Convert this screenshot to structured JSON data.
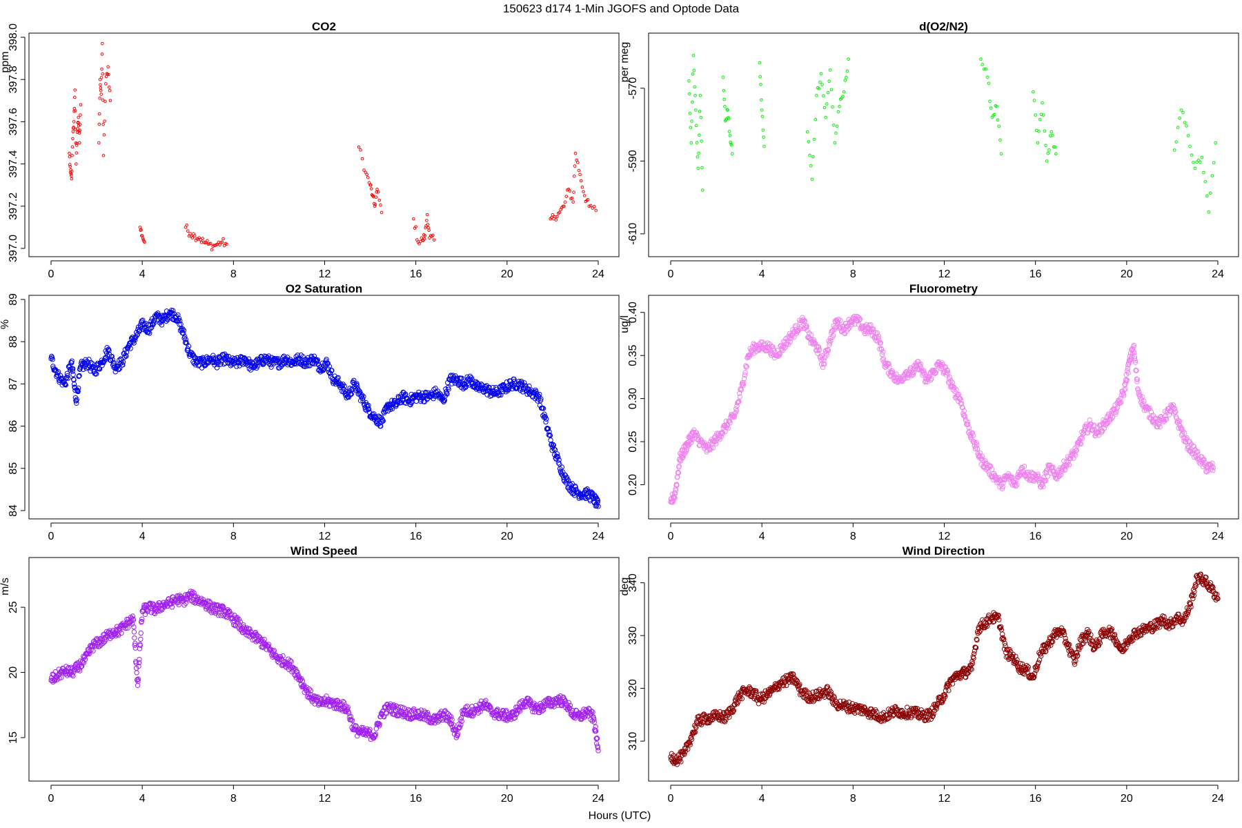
{
  "figure": {
    "title": "150623   d174   1-Min  JGOFS and Optode Data",
    "x_label": "Hours (UTC)"
  },
  "chart_data": [
    {
      "type": "scatter",
      "title": "CO2",
      "xlabel": "",
      "ylabel": "ppm",
      "xlim": [
        0,
        24
      ],
      "ylim": [
        397.0,
        398.0
      ],
      "xticks": [
        0,
        4,
        8,
        12,
        16,
        20,
        24
      ],
      "yticks": [
        397.0,
        397.2,
        397.4,
        397.6,
        397.8,
        398.0
      ],
      "ytick_labels": [
        "397.0",
        "397.2",
        "397.4",
        "397.6",
        "397.8",
        "398.0"
      ],
      "ytick_rotation": "vertical",
      "color": "#ff0000",
      "marker_size": "small",
      "x": [
        0.8,
        0.85,
        0.9,
        0.95,
        1.0,
        1.05,
        1.1,
        1.15,
        1.2,
        1.25,
        1.3,
        2.1,
        2.15,
        2.2,
        2.25,
        2.3,
        2.4,
        2.5,
        2.6,
        3.9,
        4.0,
        4.1,
        5.9,
        6.1,
        6.3,
        6.5,
        6.7,
        6.9,
        7.1,
        7.3,
        7.5,
        7.7,
        13.5,
        13.8,
        14.0,
        14.1,
        14.2,
        14.3,
        14.5,
        15.9,
        16.1,
        16.3,
        16.4,
        16.5,
        16.6,
        16.8,
        21.9,
        22.1,
        22.3,
        22.5,
        22.7,
        22.9,
        23.0,
        23.2,
        23.4,
        23.6,
        23.9
      ],
      "y": [
        397.45,
        397.36,
        397.33,
        397.52,
        397.6,
        397.75,
        397.4,
        397.55,
        397.62,
        397.5,
        397.68,
        397.5,
        397.8,
        397.73,
        397.97,
        397.44,
        397.78,
        397.86,
        397.7,
        397.1,
        397.06,
        397.03,
        397.1,
        397.07,
        397.06,
        397.05,
        397.03,
        397.02,
        397.01,
        397.02,
        397.03,
        397.02,
        397.48,
        397.36,
        397.3,
        397.25,
        397.2,
        397.28,
        397.17,
        397.14,
        397.03,
        397.04,
        397.06,
        397.16,
        397.05,
        397.04,
        397.14,
        397.15,
        397.17,
        397.2,
        397.28,
        397.22,
        397.45,
        397.35,
        397.25,
        397.2,
        397.18
      ]
    },
    {
      "type": "scatter",
      "title": "d(O2/N2)",
      "xlabel": "",
      "ylabel": "per meg",
      "xlim": [
        0,
        24
      ],
      "ylim": [
        -614,
        -556
      ],
      "xticks": [
        0,
        4,
        8,
        12,
        16,
        20,
        24
      ],
      "yticks": [
        -570,
        -590,
        -610
      ],
      "ytick_labels": [
        "-570",
        "-590",
        "-610"
      ],
      "ytick_rotation": "vertical",
      "color": "#00ee00",
      "marker_size": "small",
      "x": [
        0.8,
        0.9,
        1.0,
        1.1,
        1.2,
        1.3,
        1.4,
        2.3,
        2.4,
        2.5,
        2.6,
        2.7,
        3.9,
        4.0,
        4.1,
        6.0,
        6.2,
        6.4,
        6.6,
        6.8,
        7.0,
        7.2,
        7.4,
        7.6,
        7.8,
        13.6,
        13.9,
        14.1,
        14.3,
        14.5,
        15.9,
        16.1,
        16.3,
        16.5,
        16.7,
        16.9,
        22.1,
        22.4,
        22.7,
        23.0,
        23.3,
        23.6,
        23.9
      ],
      "y": [
        -568,
        -585,
        -561,
        -576,
        -592,
        -572,
        -598,
        -567,
        -579,
        -576,
        -583,
        -588,
        -563,
        -576,
        -586,
        -582,
        -595,
        -572,
        -566,
        -578,
        -565,
        -585,
        -575,
        -571,
        -562,
        -562,
        -567,
        -578,
        -575,
        -588,
        -571,
        -585,
        -574,
        -590,
        -582,
        -588,
        -587,
        -576,
        -583,
        -592,
        -589,
        -604,
        -585
      ],
      "dark_points_note": ""
    },
    {
      "type": "scatter",
      "title": "O2 Saturation",
      "xlabel": "",
      "ylabel": "%",
      "xlim": [
        0,
        24
      ],
      "ylim": [
        84,
        89
      ],
      "xticks": [
        0,
        4,
        8,
        12,
        16,
        20,
        24
      ],
      "yticks": [
        84,
        85,
        86,
        87,
        88,
        89
      ],
      "ytick_labels": [
        "84",
        "85",
        "86",
        "87",
        "88",
        "89"
      ],
      "ytick_rotation": "vertical",
      "color": "#0000ee",
      "marker_size": "large",
      "x": [
        0.0,
        0.3,
        0.6,
        0.9,
        1.1,
        1.3,
        1.6,
        1.9,
        2.2,
        2.5,
        2.8,
        3.1,
        3.4,
        3.7,
        4.0,
        4.3,
        4.6,
        4.9,
        5.2,
        5.5,
        5.8,
        6.1,
        6.4,
        6.7,
        7.0,
        7.3,
        7.6,
        7.9,
        8.2,
        8.5,
        8.8,
        9.1,
        9.4,
        9.7,
        10.0,
        10.3,
        10.6,
        10.9,
        11.2,
        11.5,
        11.8,
        12.1,
        12.4,
        12.7,
        13.0,
        13.3,
        13.6,
        13.9,
        14.2,
        14.5,
        14.8,
        15.1,
        15.4,
        15.7,
        16.0,
        16.3,
        16.6,
        16.9,
        17.2,
        17.5,
        17.8,
        18.1,
        18.4,
        18.7,
        19.0,
        19.3,
        19.6,
        19.9,
        20.2,
        20.5,
        20.8,
        21.1,
        21.4,
        21.7,
        22.0,
        22.3,
        22.6,
        22.9,
        23.2,
        23.5,
        23.8,
        24.0
      ],
      "y": [
        87.6,
        87.2,
        87.0,
        87.5,
        86.6,
        87.4,
        87.5,
        87.3,
        87.5,
        87.8,
        87.4,
        87.5,
        87.9,
        88.1,
        88.4,
        88.3,
        88.6,
        88.5,
        88.7,
        88.6,
        88.2,
        87.7,
        87.5,
        87.5,
        87.6,
        87.5,
        87.6,
        87.5,
        87.5,
        87.6,
        87.4,
        87.5,
        87.6,
        87.5,
        87.5,
        87.6,
        87.5,
        87.6,
        87.5,
        87.6,
        87.4,
        87.5,
        87.1,
        87.0,
        86.7,
        87.0,
        86.7,
        86.4,
        86.2,
        86.1,
        86.5,
        86.5,
        86.7,
        86.6,
        86.7,
        86.7,
        86.7,
        86.8,
        86.6,
        87.1,
        87.1,
        87.0,
        87.1,
        86.9,
        86.9,
        86.8,
        86.8,
        86.9,
        87.0,
        87.0,
        86.9,
        86.8,
        86.7,
        86.1,
        85.5,
        85.1,
        84.7,
        84.5,
        84.4,
        84.4,
        84.3,
        84.1
      ]
    },
    {
      "type": "scatter",
      "title": "Fluorometry",
      "xlabel": "",
      "ylabel": "ug/l",
      "xlim": [
        0,
        24
      ],
      "ylim": [
        0.17,
        0.415
      ],
      "xticks": [
        0,
        4,
        8,
        12,
        16,
        20,
        24
      ],
      "yticks": [
        0.2,
        0.25,
        0.3,
        0.35,
        0.4
      ],
      "ytick_labels": [
        "0.20",
        "0.25",
        "0.30",
        "0.35",
        "0.40"
      ],
      "ytick_rotation": "vertical",
      "color": "#ee82ee",
      "marker_size": "large",
      "x": [
        0.0,
        0.2,
        0.4,
        0.6,
        0.8,
        1.0,
        1.3,
        1.6,
        1.9,
        2.2,
        2.5,
        2.8,
        3.1,
        3.4,
        3.7,
        4.0,
        4.3,
        4.6,
        4.9,
        5.2,
        5.5,
        5.8,
        6.1,
        6.4,
        6.7,
        7.0,
        7.3,
        7.6,
        7.9,
        8.2,
        8.5,
        8.8,
        9.1,
        9.4,
        9.7,
        10.0,
        10.3,
        10.6,
        10.9,
        11.2,
        11.5,
        11.8,
        12.1,
        12.4,
        12.7,
        13.0,
        13.3,
        13.6,
        13.9,
        14.2,
        14.5,
        14.8,
        15.1,
        15.4,
        15.7,
        16.0,
        16.3,
        16.6,
        16.9,
        17.2,
        17.5,
        17.8,
        18.1,
        18.4,
        18.7,
        19.0,
        19.3,
        19.6,
        19.9,
        20.1,
        20.3,
        20.5,
        20.8,
        21.1,
        21.4,
        21.7,
        22.0,
        22.3,
        22.6,
        22.9,
        23.2,
        23.5,
        23.8
      ],
      "y": [
        0.18,
        0.19,
        0.23,
        0.24,
        0.25,
        0.26,
        0.25,
        0.24,
        0.25,
        0.26,
        0.27,
        0.28,
        0.31,
        0.35,
        0.36,
        0.36,
        0.36,
        0.35,
        0.36,
        0.37,
        0.38,
        0.39,
        0.37,
        0.36,
        0.34,
        0.37,
        0.39,
        0.38,
        0.39,
        0.39,
        0.38,
        0.38,
        0.37,
        0.34,
        0.33,
        0.32,
        0.33,
        0.33,
        0.34,
        0.32,
        0.33,
        0.34,
        0.33,
        0.31,
        0.3,
        0.27,
        0.25,
        0.23,
        0.22,
        0.21,
        0.2,
        0.21,
        0.2,
        0.22,
        0.21,
        0.21,
        0.2,
        0.22,
        0.21,
        0.22,
        0.23,
        0.24,
        0.26,
        0.27,
        0.26,
        0.27,
        0.28,
        0.29,
        0.31,
        0.34,
        0.36,
        0.31,
        0.29,
        0.28,
        0.27,
        0.28,
        0.29,
        0.27,
        0.25,
        0.24,
        0.23,
        0.22,
        0.22
      ]
    },
    {
      "type": "scatter",
      "title": "Wind Speed",
      "xlabel": "",
      "ylabel": "m/s",
      "xlim": [
        0,
        24
      ],
      "ylim": [
        12.3,
        28.5
      ],
      "xticks": [
        0,
        4,
        8,
        12,
        16,
        20,
        24
      ],
      "yticks": [
        15,
        20,
        25
      ],
      "ytick_labels": [
        "15",
        "20",
        "25"
      ],
      "ytick_rotation": "vertical",
      "color": "#a020f0",
      "marker_size": "large",
      "x": [
        0.0,
        0.3,
        0.6,
        0.9,
        1.2,
        1.5,
        1.8,
        2.1,
        2.4,
        2.7,
        3.0,
        3.3,
        3.6,
        3.8,
        4.0,
        4.3,
        4.6,
        4.9,
        5.2,
        5.5,
        5.8,
        6.1,
        6.4,
        6.7,
        7.0,
        7.3,
        7.6,
        7.9,
        8.2,
        8.5,
        8.8,
        9.1,
        9.4,
        9.7,
        10.0,
        10.3,
        10.6,
        10.9,
        11.2,
        11.5,
        11.8,
        12.1,
        12.4,
        12.7,
        13.0,
        13.3,
        13.6,
        13.9,
        14.2,
        14.5,
        14.8,
        15.1,
        15.4,
        15.7,
        16.0,
        16.3,
        16.6,
        16.9,
        17.2,
        17.5,
        17.8,
        18.1,
        18.4,
        18.7,
        19.0,
        19.3,
        19.6,
        19.9,
        20.2,
        20.5,
        20.8,
        21.1,
        21.4,
        21.7,
        22.0,
        22.3,
        22.6,
        22.9,
        23.2,
        23.5,
        23.8,
        24.0
      ],
      "y": [
        19.4,
        19.8,
        20.1,
        20.0,
        20.4,
        21.0,
        22.0,
        22.3,
        22.7,
        23.1,
        23.2,
        23.7,
        24.1,
        19.0,
        24.7,
        25.0,
        24.8,
        25.2,
        25.3,
        25.6,
        25.5,
        25.9,
        25.6,
        25.4,
        25.0,
        24.8,
        24.7,
        24.2,
        23.8,
        23.1,
        22.9,
        22.5,
        22.1,
        21.5,
        21.0,
        20.8,
        20.4,
        19.6,
        18.6,
        18.0,
        17.6,
        17.8,
        17.6,
        17.5,
        17.2,
        15.6,
        15.4,
        15.3,
        15.2,
        16.8,
        17.3,
        17.1,
        17.0,
        16.8,
        16.8,
        16.7,
        16.5,
        16.3,
        16.8,
        16.4,
        15.2,
        17.1,
        17.0,
        17.2,
        17.6,
        17.0,
        16.8,
        16.7,
        16.6,
        17.2,
        17.8,
        17.4,
        17.2,
        17.6,
        17.7,
        17.9,
        17.6,
        16.8,
        16.6,
        17.0,
        16.5,
        14.0
      ]
    },
    {
      "type": "scatter",
      "title": "Wind Direction",
      "xlabel": "",
      "ylabel": "deg",
      "xlim": [
        0,
        24
      ],
      "ylim": [
        304,
        344
      ],
      "xticks": [
        0,
        4,
        8,
        12,
        16,
        20,
        24
      ],
      "yticks": [
        310,
        320,
        330,
        340
      ],
      "ytick_labels": [
        "310",
        "320",
        "330",
        "340"
      ],
      "ytick_rotation": "vertical",
      "color": "#8b0000",
      "marker_size": "large",
      "x": [
        0.0,
        0.3,
        0.6,
        0.9,
        1.2,
        1.5,
        1.8,
        2.1,
        2.4,
        2.7,
        3.0,
        3.3,
        3.6,
        3.9,
        4.2,
        4.5,
        4.8,
        5.1,
        5.4,
        5.7,
        6.0,
        6.3,
        6.6,
        6.9,
        7.2,
        7.5,
        7.8,
        8.1,
        8.4,
        8.7,
        9.0,
        9.3,
        9.6,
        9.9,
        10.2,
        10.5,
        10.8,
        11.1,
        11.4,
        11.7,
        12.0,
        12.3,
        12.6,
        12.9,
        13.2,
        13.5,
        13.8,
        14.1,
        14.4,
        14.7,
        15.0,
        15.3,
        15.6,
        15.9,
        16.2,
        16.5,
        16.8,
        17.1,
        17.4,
        17.7,
        18.0,
        18.3,
        18.6,
        18.9,
        19.2,
        19.5,
        19.8,
        20.1,
        20.4,
        20.7,
        21.0,
        21.3,
        21.6,
        21.9,
        22.2,
        22.5,
        22.8,
        23.1,
        23.4,
        23.7,
        24.0
      ],
      "y": [
        307.0,
        306.5,
        307.5,
        310.8,
        313.8,
        314.2,
        314.5,
        314.8,
        314.4,
        316.2,
        318.5,
        319.6,
        319.2,
        317.8,
        318.7,
        319.7,
        321.0,
        321.5,
        322.0,
        319.5,
        318.5,
        318.4,
        319.0,
        319.5,
        317.2,
        316.8,
        316.5,
        316.2,
        316.0,
        315.5,
        315.0,
        314.5,
        315.2,
        315.8,
        315.3,
        315.5,
        315.2,
        314.8,
        315.0,
        317.0,
        318.8,
        321.5,
        322.5,
        323.0,
        323.6,
        331.5,
        332.4,
        333.5,
        333.0,
        326.8,
        326.0,
        324.0,
        323.5,
        322.0,
        326.5,
        328.0,
        330.0,
        331.0,
        328.5,
        325.0,
        329.0,
        330.5,
        327.5,
        330.0,
        331.0,
        329.5,
        327.0,
        329.5,
        330.5,
        331.0,
        331.5,
        332.0,
        333.0,
        332.0,
        333.5,
        332.8,
        336.0,
        341.0,
        340.5,
        339.0,
        337.0
      ],
      "extra_note": ""
    }
  ]
}
